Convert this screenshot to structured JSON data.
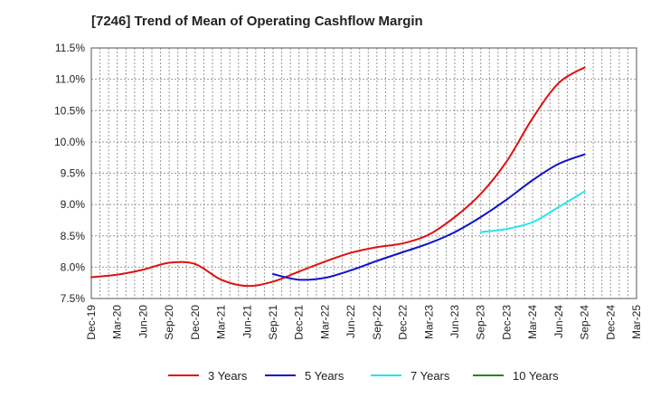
{
  "chart_data": {
    "type": "line",
    "title": "[7246]  Trend of Mean of Operating Cashflow Margin",
    "xlabel": "",
    "ylabel": "",
    "ylim": [
      7.5,
      11.5
    ],
    "grid": true,
    "legend_position": "bottom",
    "categories": [
      "Dec-19",
      "Mar-20",
      "Jun-20",
      "Sep-20",
      "Dec-20",
      "Mar-21",
      "Jun-21",
      "Sep-21",
      "Dec-21",
      "Mar-22",
      "Jun-22",
      "Sep-22",
      "Dec-22",
      "Mar-23",
      "Jun-23",
      "Sep-23",
      "Dec-23",
      "Mar-24",
      "Jun-24",
      "Sep-24",
      "Dec-24",
      "Mar-25"
    ],
    "y_ticks": [
      "7.5%",
      "8.0%",
      "8.5%",
      "9.0%",
      "9.5%",
      "10.0%",
      "10.5%",
      "11.0%",
      "11.5%"
    ],
    "series": [
      {
        "name": "3 Years",
        "color": "#dd1111",
        "x": [
          "Dec-19",
          "Mar-20",
          "Jun-20",
          "Sep-20",
          "Dec-20",
          "Mar-21",
          "Jun-21",
          "Sep-21",
          "Dec-21",
          "Mar-22",
          "Jun-22",
          "Sep-22",
          "Dec-22",
          "Mar-23",
          "Jun-23",
          "Sep-23",
          "Dec-23",
          "Mar-24",
          "Jun-24",
          "Sep-24"
        ],
        "values": [
          7.84,
          7.88,
          7.96,
          8.07,
          8.05,
          7.8,
          7.7,
          7.77,
          7.93,
          8.09,
          8.23,
          8.32,
          8.38,
          8.52,
          8.8,
          9.17,
          9.69,
          10.38,
          10.94,
          11.19
        ]
      },
      {
        "name": "5 Years",
        "color": "#1111cc",
        "x": [
          "Sep-21",
          "Dec-21",
          "Mar-22",
          "Jun-22",
          "Sep-22",
          "Dec-22",
          "Mar-23",
          "Jun-23",
          "Sep-23",
          "Dec-23",
          "Mar-24",
          "Jun-24",
          "Sep-24"
        ],
        "values": [
          7.89,
          7.8,
          7.83,
          7.95,
          8.1,
          8.24,
          8.38,
          8.56,
          8.8,
          9.08,
          9.39,
          9.65,
          9.8
        ]
      },
      {
        "name": "7 Years",
        "color": "#22e5ee",
        "x": [
          "Sep-23",
          "Dec-23",
          "Mar-24",
          "Jun-24",
          "Sep-24"
        ],
        "values": [
          8.56,
          8.61,
          8.72,
          8.96,
          9.21
        ]
      },
      {
        "name": "10 Years",
        "color": "#228822",
        "x": [],
        "values": []
      }
    ]
  }
}
